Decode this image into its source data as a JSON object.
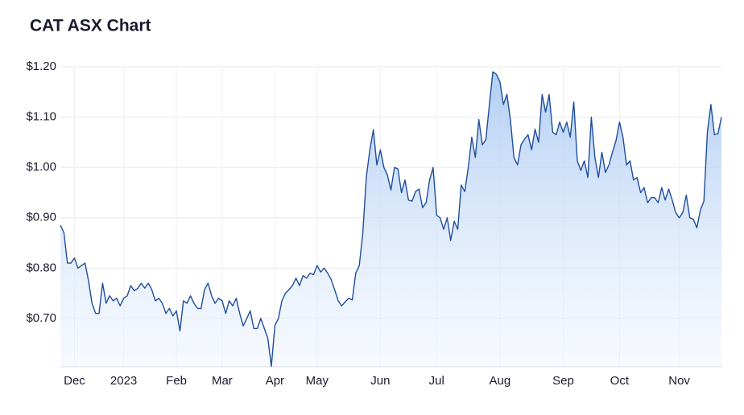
{
  "chart_data": {
    "type": "line",
    "title": "CAT ASX Chart",
    "color": "#1f4e9c",
    "grid": true,
    "xlim": [
      0,
      188
    ],
    "xticks": [
      {
        "value": 4,
        "label": "Dec"
      },
      {
        "value": 18,
        "label": "2023"
      },
      {
        "value": 33,
        "label": "Feb"
      },
      {
        "value": 46,
        "label": "Mar"
      },
      {
        "value": 61,
        "label": "Apr"
      },
      {
        "value": 73,
        "label": "May"
      },
      {
        "value": 91,
        "label": "Jun"
      },
      {
        "value": 107,
        "label": "Jul"
      },
      {
        "value": 125,
        "label": "Aug"
      },
      {
        "value": 143,
        "label": "Sep"
      },
      {
        "value": 159,
        "label": "Oct"
      },
      {
        "value": 176,
        "label": "Nov"
      }
    ],
    "ylim": [
      0.604,
      1.2
    ],
    "yticks": [
      {
        "value": 0.7,
        "label": "$0.70"
      },
      {
        "value": 0.8,
        "label": "$0.80"
      },
      {
        "value": 0.9,
        "label": "$0.90"
      },
      {
        "value": 1.0,
        "label": "$1.00"
      },
      {
        "value": 1.1,
        "label": "$1.10"
      },
      {
        "value": 1.2,
        "label": "$1.20"
      }
    ],
    "values": [
      0.885,
      0.87,
      0.81,
      0.81,
      0.82,
      0.8,
      0.805,
      0.81,
      0.775,
      0.73,
      0.71,
      0.71,
      0.77,
      0.73,
      0.745,
      0.735,
      0.74,
      0.725,
      0.74,
      0.745,
      0.765,
      0.755,
      0.76,
      0.77,
      0.76,
      0.77,
      0.757,
      0.735,
      0.74,
      0.73,
      0.71,
      0.72,
      0.705,
      0.715,
      0.675,
      0.735,
      0.73,
      0.745,
      0.73,
      0.72,
      0.72,
      0.757,
      0.77,
      0.745,
      0.73,
      0.74,
      0.735,
      0.71,
      0.735,
      0.725,
      0.74,
      0.71,
      0.685,
      0.7,
      0.715,
      0.68,
      0.68,
      0.7,
      0.68,
      0.66,
      0.605,
      0.686,
      0.7,
      0.735,
      0.75,
      0.757,
      0.765,
      0.78,
      0.765,
      0.785,
      0.78,
      0.79,
      0.787,
      0.805,
      0.792,
      0.8,
      0.79,
      0.777,
      0.757,
      0.735,
      0.725,
      0.733,
      0.74,
      0.737,
      0.79,
      0.805,
      0.87,
      0.98,
      1.035,
      1.075,
      1.005,
      1.035,
      1.0,
      0.985,
      0.955,
      1.0,
      0.997,
      0.95,
      0.975,
      0.935,
      0.933,
      0.952,
      0.957,
      0.92,
      0.93,
      0.975,
      1.0,
      0.905,
      0.9,
      0.877,
      0.9,
      0.855,
      0.893,
      0.877,
      0.965,
      0.952,
      1.0,
      1.06,
      1.02,
      1.095,
      1.045,
      1.055,
      1.125,
      1.19,
      1.185,
      1.17,
      1.125,
      1.145,
      1.093,
      1.02,
      1.005,
      1.045,
      1.056,
      1.065,
      1.035,
      1.076,
      1.05,
      1.145,
      1.11,
      1.145,
      1.07,
      1.065,
      1.09,
      1.07,
      1.09,
      1.06,
      1.13,
      1.013,
      0.994,
      1.013,
      0.98,
      1.1,
      1.02,
      0.98,
      1.03,
      0.99,
      1.005,
      1.03,
      1.053,
      1.09,
      1.06,
      1.005,
      1.013,
      0.975,
      0.98,
      0.95,
      0.96,
      0.93,
      0.94,
      0.94,
      0.93,
      0.96,
      0.935,
      0.957,
      0.935,
      0.91,
      0.9,
      0.91,
      0.945,
      0.9,
      0.897,
      0.88,
      0.915,
      0.933,
      1.07,
      1.125,
      1.065,
      1.067,
      1.1
    ]
  }
}
